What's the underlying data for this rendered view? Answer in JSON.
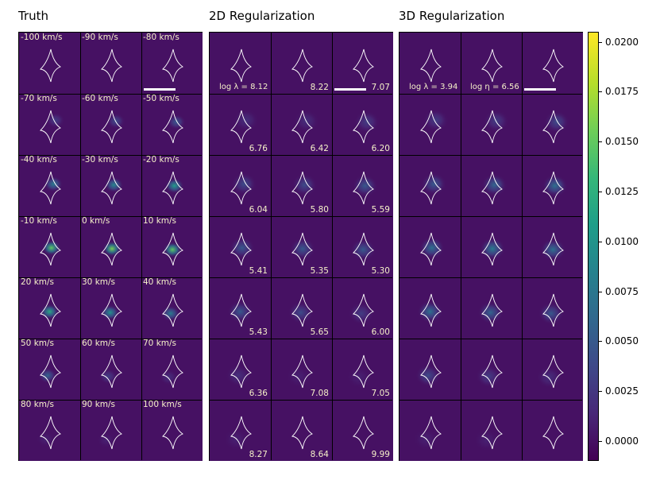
{
  "panels": [
    {
      "title": "Truth",
      "label_kind": "velocity",
      "labels": [
        "-100 km/s",
        "-90 km/s",
        "-80 km/s",
        "-70 km/s",
        "-60 km/s",
        "-50 km/s",
        "-40 km/s",
        "-30 km/s",
        "-20 km/s",
        "-10 km/s",
        "0 km/s",
        "10 km/s",
        "20 km/s",
        "30 km/s",
        "40 km/s",
        "50 km/s",
        "60 km/s",
        "70 km/s",
        "80 km/s",
        "90 km/s",
        "100 km/s"
      ]
    },
    {
      "title": "2D Regularization",
      "label_kind": "lambda",
      "special_label": "log λ = 8.12",
      "labels": [
        "",
        "8.22",
        "7.07",
        "6.76",
        "6.42",
        "6.20",
        "6.04",
        "5.80",
        "5.59",
        "5.41",
        "5.35",
        "5.30",
        "5.43",
        "5.65",
        "6.00",
        "6.36",
        "7.08",
        "7.05",
        "8.27",
        "8.64",
        "9.99"
      ]
    },
    {
      "title": "3D Regularization",
      "label_kind": "reg3d",
      "special_labels": [
        "log λ = 3.94",
        "log η = 6.56"
      ]
    }
  ],
  "chart_data": {
    "type": "heatmap",
    "rows": 7,
    "columns_per_panel": 3,
    "velocities_km_s": [
      -100,
      -90,
      -80,
      -70,
      -60,
      -50,
      -40,
      -30,
      -20,
      -10,
      0,
      10,
      20,
      30,
      40,
      50,
      60,
      70,
      80,
      90,
      100
    ],
    "log_lambda_2d": [
      8.12,
      8.22,
      7.07,
      6.76,
      6.42,
      6.2,
      6.04,
      5.8,
      5.59,
      5.41,
      5.35,
      5.3,
      5.43,
      5.65,
      6.0,
      6.36,
      7.08,
      7.05,
      8.27,
      8.64,
      9.99
    ],
    "log_lambda_3d": 3.94,
    "log_eta_3d": 6.56,
    "colorbar": {
      "min": -0.001,
      "max": 0.0205,
      "ticks": [
        0.0,
        0.0025,
        0.005,
        0.0075,
        0.01,
        0.0125,
        0.015,
        0.0175,
        0.02
      ],
      "tick_labels": [
        "0.0000",
        "0.0025",
        "0.0050",
        "0.0075",
        "0.0100",
        "0.0125",
        "0.0150",
        "0.0175",
        "0.0200"
      ],
      "colormap": "viridis"
    },
    "peak_intensity_truth": [
      0.0,
      0.0,
      0.0,
      0.003,
      0.004,
      0.005,
      0.008,
      0.009,
      0.011,
      0.015,
      0.016,
      0.015,
      0.012,
      0.01,
      0.008,
      0.006,
      0.003,
      0.002,
      0.001,
      0.001,
      0.0
    ],
    "peak_intensity_2d": [
      0.0,
      0.0,
      0.0,
      0.002,
      0.002,
      0.003,
      0.004,
      0.004,
      0.005,
      0.005,
      0.005,
      0.005,
      0.005,
      0.004,
      0.003,
      0.002,
      0.001,
      0.001,
      0.001,
      0.0,
      0.0
    ],
    "peak_intensity_3d": [
      0.0,
      0.0,
      0.0,
      0.003,
      0.003,
      0.004,
      0.005,
      0.006,
      0.007,
      0.007,
      0.008,
      0.007,
      0.007,
      0.006,
      0.005,
      0.004,
      0.003,
      0.002,
      0.001,
      0.001,
      0.0
    ]
  }
}
